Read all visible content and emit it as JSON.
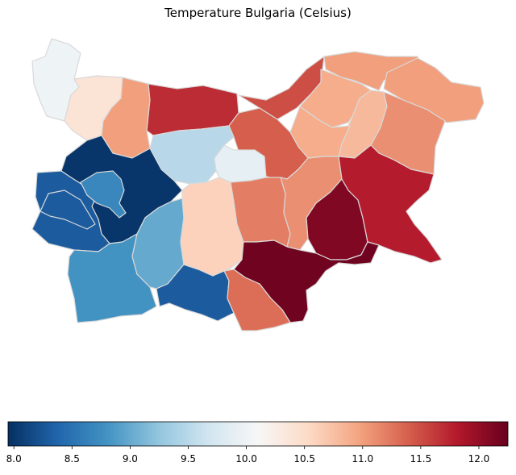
{
  "title": "Temperature Bulgaria (Celsius)",
  "colormap": "RdBu_r",
  "colorbar": {
    "min": 7.95,
    "max": 12.25,
    "ticks": [
      "8.0",
      "8.5",
      "9.0",
      "9.5",
      "10.0",
      "10.5",
      "11.0",
      "11.5",
      "12.0"
    ],
    "stops": [
      "#053061",
      "#2166ac",
      "#4393c3",
      "#92c5de",
      "#d1e5f0",
      "#f7f7f7",
      "#fddbc7",
      "#f4a582",
      "#d6604d",
      "#b2182b",
      "#67001f"
    ]
  },
  "regions": [
    {
      "id": "vidin",
      "value": 10.0
    },
    {
      "id": "montana",
      "value": 10.4
    },
    {
      "id": "vratsa",
      "value": 11.0
    },
    {
      "id": "pleven",
      "value": 11.7
    },
    {
      "id": "ruse",
      "value": 11.5
    },
    {
      "id": "silistra",
      "value": 11.0
    },
    {
      "id": "razgrad",
      "value": 10.9
    },
    {
      "id": "dobrich",
      "value": 11.0
    },
    {
      "id": "shumen",
      "value": 10.8
    },
    {
      "id": "varna",
      "value": 11.1
    },
    {
      "id": "targovishte",
      "value": 10.9
    },
    {
      "id": "veliko-tarnovo",
      "value": 11.4
    },
    {
      "id": "lovech",
      "value": 9.5
    },
    {
      "id": "gabrovo",
      "value": 9.9
    },
    {
      "id": "sofia-province",
      "value": 8.0
    },
    {
      "id": "pernik",
      "value": 8.3
    },
    {
      "id": "sofia-city",
      "value": 8.7
    },
    {
      "id": "kyustendil",
      "value": 8.3
    },
    {
      "id": "blagoevgrad",
      "value": 8.8
    },
    {
      "id": "pazardzhik",
      "value": 9.0
    },
    {
      "id": "smolyan",
      "value": 8.3
    },
    {
      "id": "plovdiv",
      "value": 10.6
    },
    {
      "id": "stara-zagora",
      "value": 11.2
    },
    {
      "id": "sliven",
      "value": 11.1
    },
    {
      "id": "yambol",
      "value": 12.1
    },
    {
      "id": "burgas",
      "value": 11.8
    },
    {
      "id": "haskovo",
      "value": 12.2
    },
    {
      "id": "kardzhali",
      "value": 11.3
    }
  ]
}
